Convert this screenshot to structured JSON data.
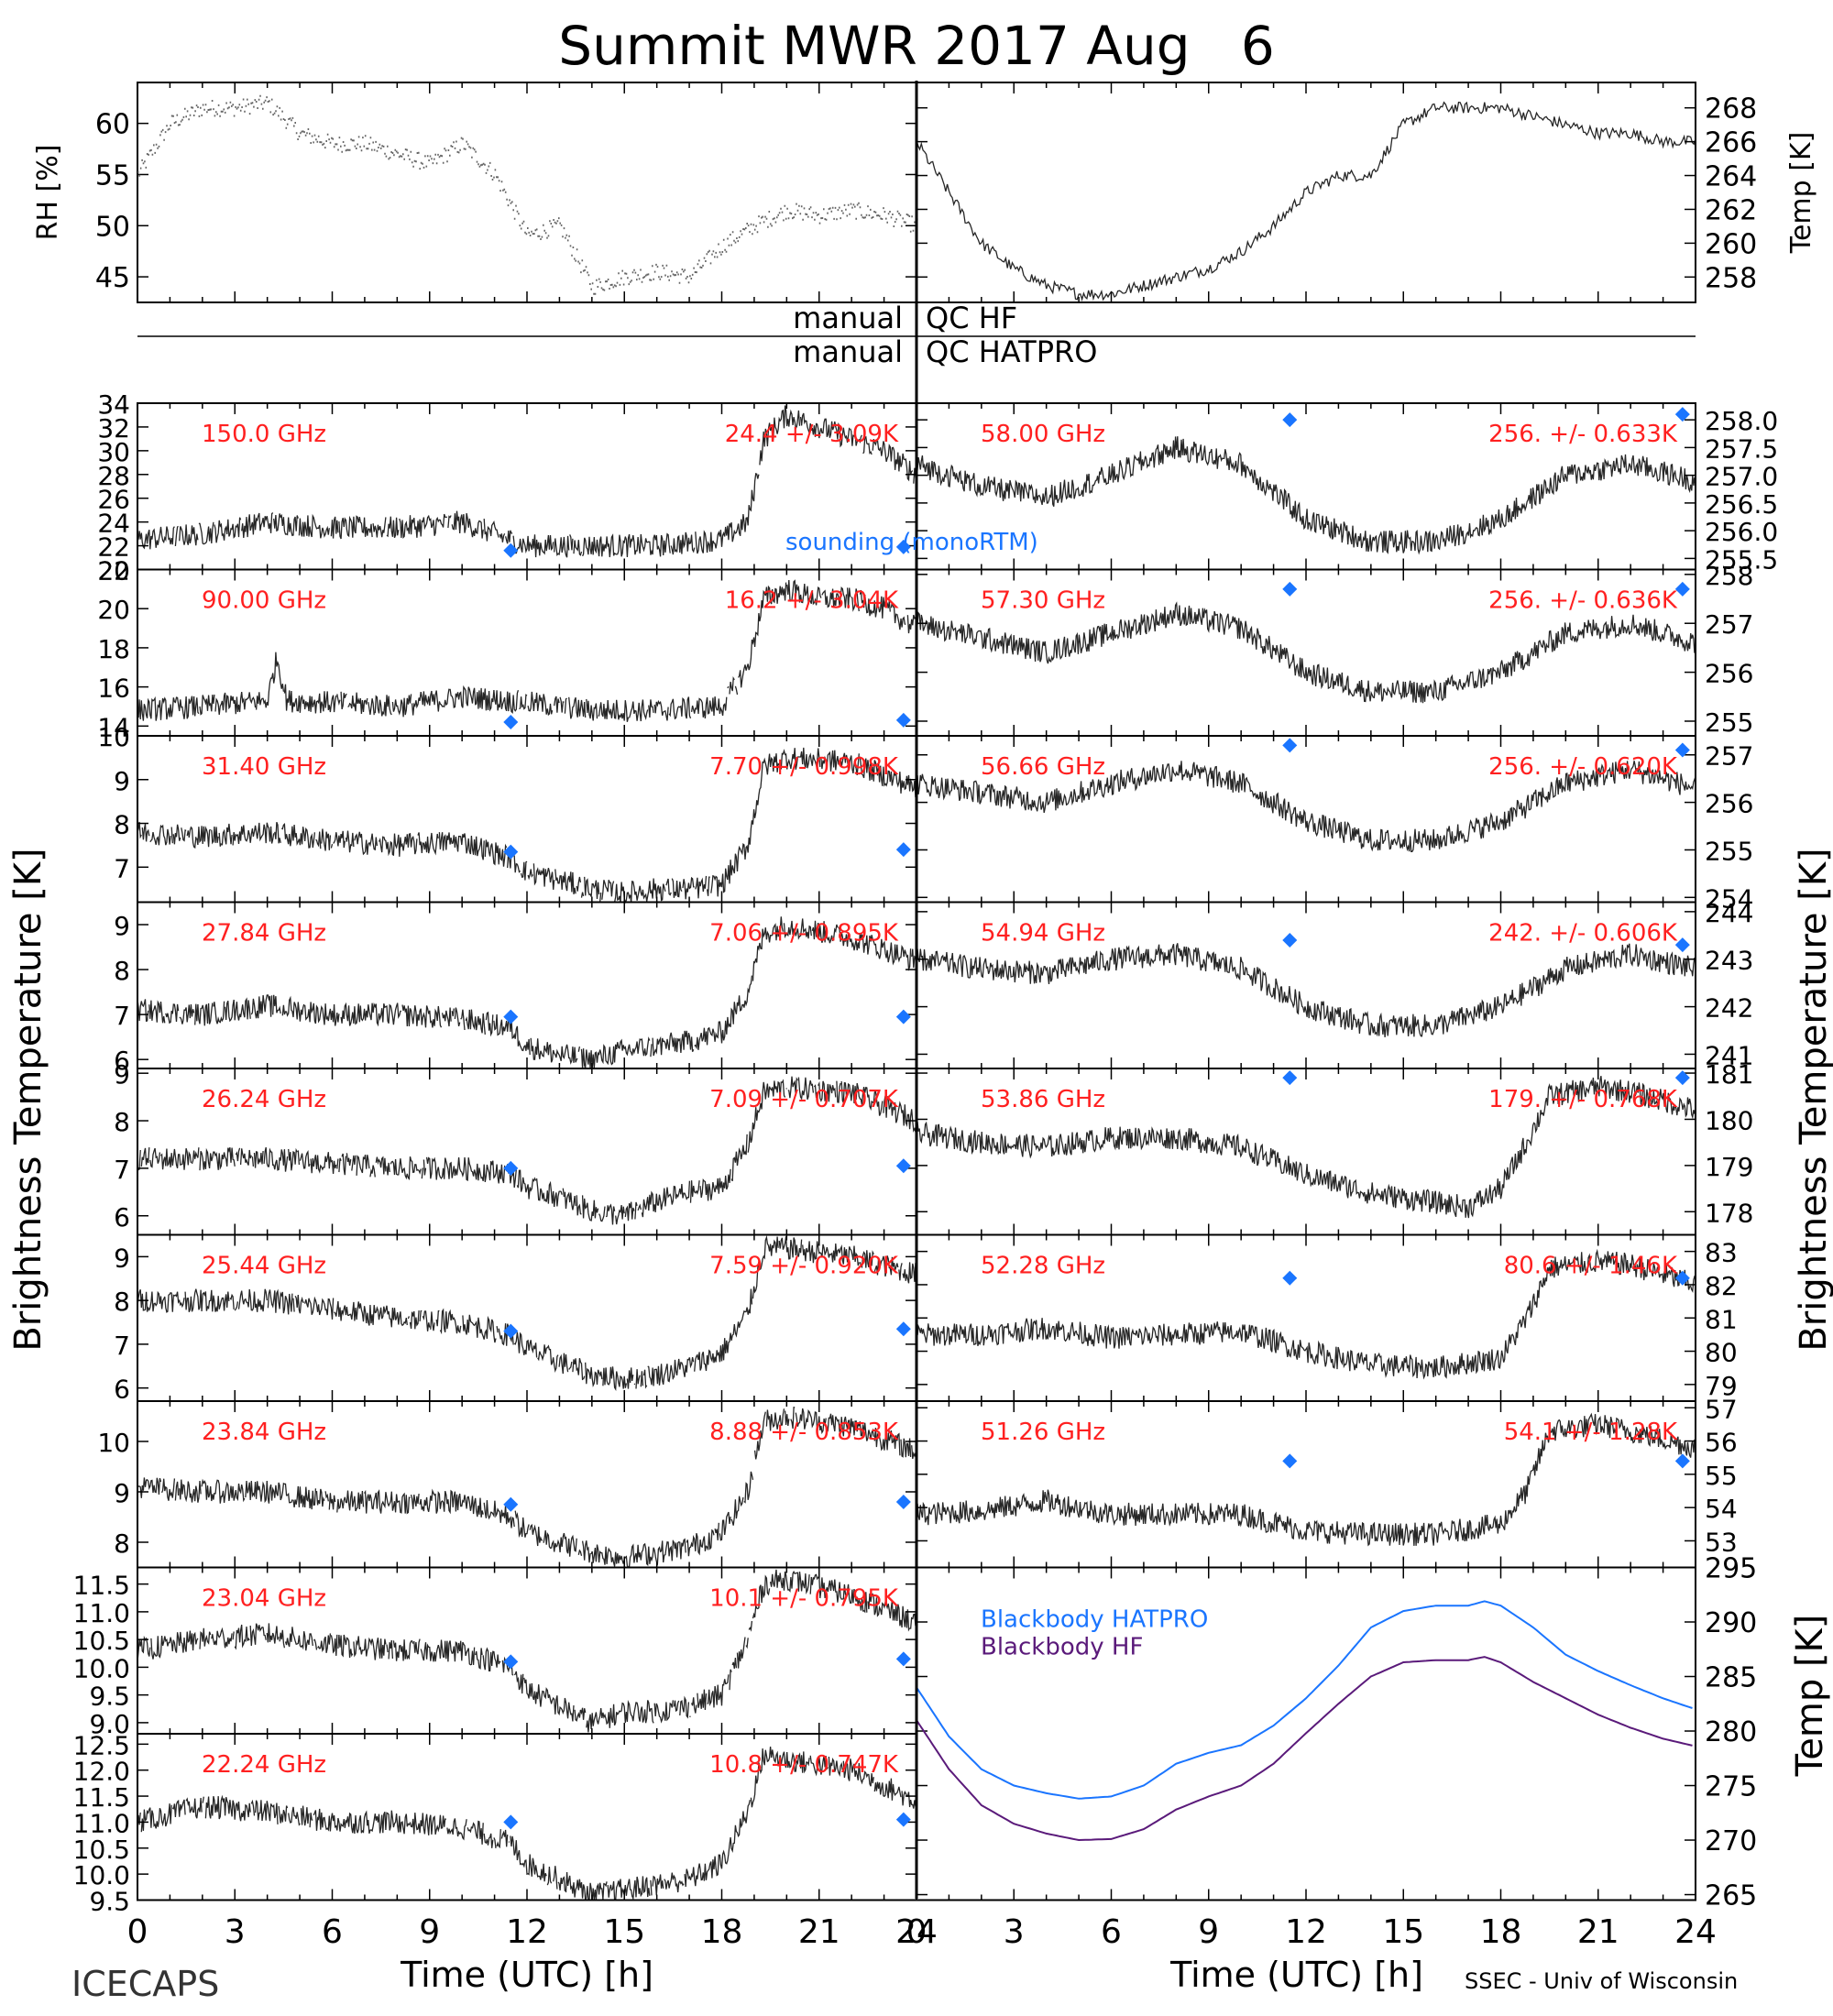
{
  "title": "Summit MWR 2017 Aug   6",
  "footer_left": "ICECAPS",
  "footer_right": "SSEC - Univ of Wisconsin",
  "colors": {
    "ink": "#000000",
    "label": "#ff2020",
    "sounding": "#1a75ff",
    "bb_hatpro": "#1a75ff",
    "bb_hf": "#5a1a7a"
  },
  "qc": {
    "hf_left": "manual",
    "hf_right": "QC HF",
    "hatpro_left": "manual",
    "hatpro_right": "QC HATPRO"
  },
  "y_axis_title": "Brightness Temperature [K]",
  "sounding_label": "sounding (monoRTM)",
  "chart_data": [
    {
      "id": "rh",
      "type": "scatter",
      "ylabel": "RH [%]",
      "xlim": [
        0,
        24
      ],
      "ylim": [
        42.5,
        64
      ],
      "yticks": [
        "45",
        "50",
        "55",
        "60"
      ],
      "x": [
        0,
        1,
        2,
        3,
        4,
        5,
        6,
        7,
        8,
        9,
        10,
        11,
        12,
        13,
        14,
        15,
        16,
        17,
        18,
        19,
        20,
        21,
        22,
        23,
        24
      ],
      "values": [
        55,
        60,
        61.5,
        61.5,
        62,
        59,
        58,
        58,
        57,
        56,
        58,
        55,
        49,
        50,
        44,
        45,
        45.5,
        45,
        48,
        50,
        51.5,
        51,
        51.5,
        51,
        50
      ]
    },
    {
      "id": "temp",
      "type": "line",
      "ylabel": "Temp [K]",
      "xlim": [
        0,
        24
      ],
      "ylim": [
        256.5,
        269.5
      ],
      "yticks": [
        "258",
        "260",
        "262",
        "264",
        "266",
        "268"
      ],
      "x": [
        0,
        1,
        2,
        3,
        4,
        5,
        6,
        7,
        8,
        9,
        10,
        11,
        12,
        13,
        14,
        15,
        16,
        17,
        18,
        19,
        20,
        21,
        22,
        23,
        24
      ],
      "values": [
        266,
        263,
        260,
        258.5,
        257.5,
        257,
        257,
        257.5,
        258,
        258.5,
        259.5,
        261,
        263,
        264,
        264,
        267,
        268,
        268,
        268,
        267.5,
        267,
        266.5,
        266.5,
        266,
        266
      ]
    },
    {
      "id": "150",
      "type": "line",
      "freq": "150.0 GHz",
      "stat": "24.4 +/- 3.09K",
      "ylim": [
        20,
        34
      ],
      "yticks": [
        "20",
        "22",
        "24",
        "26",
        "28",
        "30",
        "32",
        "34"
      ],
      "x": [
        0,
        2,
        4,
        6,
        8,
        10,
        11.5,
        12,
        14,
        16,
        18,
        18.8,
        19.3,
        20,
        21,
        22,
        23,
        24
      ],
      "values": [
        22.5,
        23,
        24,
        23.5,
        23.5,
        24,
        22.5,
        22,
        22,
        22,
        22.5,
        24,
        31,
        33,
        32,
        31,
        30,
        28
      ],
      "sounding": [
        [
          11.5,
          21.6
        ],
        [
          23.6,
          21.9
        ]
      ]
    },
    {
      "id": "90",
      "type": "line",
      "freq": "90.00 GHz",
      "stat": "16.2 +/- 3.04K",
      "ylim": [
        13.5,
        22
      ],
      "yticks": [
        "14",
        "16",
        "18",
        "20",
        "22"
      ],
      "x": [
        0,
        2,
        4,
        4.3,
        4.6,
        6,
        8,
        10,
        12,
        14,
        16,
        18,
        18.8,
        19.3,
        20,
        21,
        22,
        23,
        24
      ],
      "values": [
        14.8,
        15,
        15.3,
        17.5,
        15.3,
        15.2,
        15,
        15.5,
        15.2,
        14.8,
        14.8,
        15,
        17,
        20.5,
        21,
        20.5,
        20.5,
        20,
        19
      ],
      "sounding": [
        [
          11.5,
          14.2
        ],
        [
          23.6,
          14.3
        ]
      ]
    },
    {
      "id": "31.40",
      "type": "line",
      "freq": "31.40 GHz",
      "stat": "7.70 +/- 0.998K",
      "ylim": [
        6.2,
        10
      ],
      "yticks": [
        "7",
        "8",
        "9",
        "10"
      ],
      "x": [
        0,
        2,
        4,
        6,
        8,
        10,
        11.5,
        12,
        13,
        14,
        15,
        16,
        17,
        18,
        18.8,
        19.3,
        20,
        22,
        24
      ],
      "values": [
        7.8,
        7.7,
        7.8,
        7.6,
        7.5,
        7.6,
        7.2,
        6.9,
        6.7,
        6.5,
        6.4,
        6.5,
        6.5,
        6.6,
        7.5,
        9.3,
        9.5,
        9.4,
        8.8
      ],
      "sounding": [
        [
          11.5,
          7.35
        ],
        [
          23.6,
          7.4
        ]
      ]
    },
    {
      "id": "27.84",
      "type": "line",
      "freq": "27.84 GHz",
      "stat": "7.06 +/- 0.895K",
      "ylim": [
        5.8,
        9.5
      ],
      "yticks": [
        "6",
        "7",
        "8",
        "9"
      ],
      "x": [
        0,
        2,
        4,
        6,
        8,
        10,
        11.5,
        12,
        13,
        14,
        15,
        16,
        17,
        18,
        18.8,
        19.3,
        20,
        22,
        24
      ],
      "values": [
        7.1,
        7,
        7.2,
        7,
        7,
        6.9,
        6.7,
        6.3,
        6.1,
        6,
        6.2,
        6.3,
        6.4,
        6.6,
        7.5,
        8.8,
        9,
        8.7,
        8.2
      ],
      "sounding": [
        [
          11.5,
          6.95
        ],
        [
          23.6,
          6.95
        ]
      ]
    },
    {
      "id": "26.24",
      "type": "line",
      "freq": "26.24 GHz",
      "stat": "7.09 +/- 0.707K",
      "ylim": [
        5.6,
        9.1
      ],
      "yticks": [
        "6",
        "7",
        "8",
        "9"
      ],
      "x": [
        0,
        2,
        4,
        6,
        8,
        10,
        11.5,
        12,
        13,
        14,
        15,
        16,
        17,
        18,
        18.8,
        19.3,
        20,
        22,
        24
      ],
      "values": [
        7.2,
        7.2,
        7.2,
        7.1,
        7,
        7,
        6.9,
        6.6,
        6.4,
        6.1,
        6,
        6.3,
        6.5,
        6.6,
        7.5,
        8.6,
        8.7,
        8.6,
        8
      ],
      "sounding": [
        [
          11.5,
          7.0
        ],
        [
          23.6,
          7.05
        ]
      ]
    },
    {
      "id": "25.44",
      "type": "line",
      "freq": "25.44 GHz",
      "stat": "7.59 +/- 0.920K",
      "ylim": [
        5.7,
        9.5
      ],
      "yticks": [
        "6",
        "7",
        "8",
        "9"
      ],
      "x": [
        0,
        2,
        4,
        6,
        8,
        10,
        11.5,
        12,
        13,
        14,
        15,
        16,
        17,
        18,
        18.8,
        19.3,
        20,
        22,
        24
      ],
      "values": [
        8,
        8,
        8,
        7.8,
        7.6,
        7.5,
        7.2,
        6.9,
        6.6,
        6.3,
        6.2,
        6.3,
        6.5,
        6.8,
        7.7,
        9.2,
        9.2,
        9,
        8.6
      ],
      "sounding": [
        [
          11.5,
          7.3
        ],
        [
          23.6,
          7.35
        ]
      ]
    },
    {
      "id": "23.84",
      "type": "line",
      "freq": "23.84 GHz",
      "stat": "8.88 +/- 0.853K",
      "ylim": [
        7.5,
        10.8
      ],
      "yticks": [
        "8",
        "9",
        "10"
      ],
      "x": [
        0,
        2,
        4,
        6,
        8,
        10,
        11.5,
        12,
        13,
        14,
        15,
        16,
        17,
        18,
        18.8,
        19.3,
        20,
        22,
        24
      ],
      "values": [
        9.1,
        9,
        9,
        8.8,
        8.8,
        8.8,
        8.5,
        8.2,
        8,
        7.8,
        7.7,
        7.8,
        7.9,
        8.2,
        9,
        10.4,
        10.5,
        10.3,
        9.8
      ],
      "sounding": [
        [
          11.5,
          8.75
        ],
        [
          23.6,
          8.8
        ]
      ]
    },
    {
      "id": "23.04",
      "type": "line",
      "freq": "23.04 GHz",
      "stat": "10.1 +/- 0.795K",
      "ylim": [
        8.8,
        11.8
      ],
      "yticks": [
        "9.0",
        "9.5",
        "10.0",
        "10.5",
        "11.0",
        "11.5"
      ],
      "x": [
        0,
        2,
        4,
        6,
        8,
        10,
        11.5,
        12,
        13,
        14,
        15,
        16,
        17,
        18,
        18.8,
        19.3,
        20,
        22,
        24
      ],
      "values": [
        10.3,
        10.5,
        10.6,
        10.4,
        10.3,
        10.3,
        10,
        9.6,
        9.3,
        9,
        9.2,
        9.2,
        9.3,
        9.5,
        10.5,
        11.5,
        11.6,
        11.3,
        10.8
      ],
      "sounding": [
        [
          11.5,
          10.1
        ],
        [
          23.6,
          10.15
        ]
      ]
    },
    {
      "id": "22.24",
      "type": "line",
      "freq": "22.24 GHz",
      "stat": "10.8 +/- 0.747K",
      "ylim": [
        9.5,
        12.7
      ],
      "yticks": [
        "9.5",
        "10.0",
        "10.5",
        "11.0",
        "11.5",
        "12.0",
        "12.5"
      ],
      "x": [
        0,
        2,
        4,
        6,
        8,
        10,
        11.5,
        12,
        13,
        14,
        15,
        16,
        17,
        18,
        18.8,
        19.3,
        20,
        22,
        24
      ],
      "values": [
        11,
        11.3,
        11.2,
        11,
        11,
        10.9,
        10.6,
        10.2,
        9.9,
        9.6,
        9.7,
        9.8,
        9.9,
        10.2,
        11.2,
        12.3,
        12.2,
        12,
        11.4
      ],
      "sounding": [
        [
          11.5,
          11.0
        ],
        [
          23.6,
          11.05
        ]
      ]
    },
    {
      "id": "58.00",
      "type": "line",
      "freq": "58.00 GHz",
      "stat": "256. +/- 0.633K",
      "ylim": [
        255.3,
        258.3
      ],
      "yticks": [
        "255.5",
        "256.0",
        "256.5",
        "257.0",
        "257.5",
        "258.0"
      ],
      "x": [
        0,
        2,
        4,
        6,
        8,
        10,
        12,
        14,
        16,
        18,
        20,
        22,
        24
      ],
      "values": [
        257.2,
        256.8,
        256.6,
        257.0,
        257.5,
        257.2,
        256.2,
        255.8,
        255.8,
        256.2,
        257.0,
        257.2,
        256.9
      ],
      "sounding": [
        [
          11.5,
          258.0
        ],
        [
          23.6,
          258.1
        ]
      ]
    },
    {
      "id": "57.30",
      "type": "line",
      "freq": "57.30 GHz",
      "stat": "256. +/- 0.636K",
      "ylim": [
        254.7,
        258.1
      ],
      "yticks": [
        "255",
        "256",
        "257",
        "258"
      ],
      "x": [
        0,
        2,
        4,
        6,
        8,
        10,
        12,
        14,
        16,
        18,
        20,
        22,
        24
      ],
      "values": [
        257.0,
        256.7,
        256.4,
        256.8,
        257.2,
        256.9,
        256.0,
        255.6,
        255.6,
        256.0,
        256.8,
        257.0,
        256.6
      ],
      "sounding": [
        [
          11.5,
          257.7
        ],
        [
          23.6,
          257.7
        ]
      ]
    },
    {
      "id": "56.66",
      "type": "line",
      "freq": "56.66 GHz",
      "stat": "256. +/- 0.620K",
      "ylim": [
        253.9,
        257.4
      ],
      "yticks": [
        "254",
        "255",
        "256",
        "257"
      ],
      "x": [
        0,
        2,
        4,
        6,
        8,
        10,
        12,
        14,
        16,
        18,
        20,
        22,
        24
      ],
      "values": [
        256.4,
        256.2,
        256.0,
        256.4,
        256.7,
        256.4,
        255.6,
        255.2,
        255.2,
        255.6,
        256.4,
        256.7,
        256.3
      ],
      "sounding": [
        [
          11.5,
          257.2
        ],
        [
          23.6,
          257.1
        ]
      ]
    },
    {
      "id": "54.94",
      "type": "line",
      "freq": "54.94 GHz",
      "stat": "242. +/- 0.606K",
      "ylim": [
        240.7,
        244.2
      ],
      "yticks": [
        "241",
        "242",
        "243",
        "244"
      ],
      "x": [
        0,
        2,
        4,
        6,
        8,
        10,
        12,
        14,
        16,
        18,
        20,
        22,
        24
      ],
      "values": [
        243.0,
        242.8,
        242.7,
        243.0,
        243.1,
        242.8,
        242.0,
        241.6,
        241.6,
        242.0,
        242.8,
        243.1,
        242.8
      ],
      "sounding": [
        [
          11.5,
          243.4
        ],
        [
          23.6,
          243.3
        ]
      ]
    },
    {
      "id": "53.86",
      "type": "line",
      "freq": "53.86 GHz",
      "stat": "179. +/- 0.768K",
      "ylim": [
        177.5,
        181.1
      ],
      "yticks": [
        "178",
        "179",
        "180",
        "181"
      ],
      "x": [
        0,
        2,
        4,
        6,
        8,
        10,
        12,
        14,
        16,
        17,
        18,
        18.8,
        19.5,
        21,
        22,
        24
      ],
      "values": [
        179.7,
        179.5,
        179.4,
        179.6,
        179.6,
        179.4,
        178.8,
        178.4,
        178.2,
        178.1,
        178.5,
        179.5,
        180.5,
        180.7,
        180.6,
        180.2
      ],
      "sounding": [
        [
          11.5,
          180.9
        ],
        [
          23.6,
          180.9
        ]
      ]
    },
    {
      "id": "52.28",
      "type": "line",
      "freq": "52.28 GHz",
      "stat": "80.6 +/- 1.46K",
      "ylim": [
        78.5,
        83.5
      ],
      "yticks": [
        "79",
        "80",
        "81",
        "82",
        "83"
      ],
      "x": [
        0,
        2,
        4,
        6,
        8,
        10,
        12,
        14,
        16,
        18,
        18.8,
        19.5,
        21,
        22,
        24
      ],
      "values": [
        80.5,
        80.5,
        80.7,
        80.4,
        80.5,
        80.6,
        80.0,
        79.6,
        79.5,
        79.8,
        81,
        82.5,
        82.7,
        82.6,
        82.0
      ],
      "sounding": [
        [
          11.5,
          82.2
        ],
        [
          23.6,
          82.2
        ]
      ]
    },
    {
      "id": "51.26",
      "type": "line",
      "freq": "51.26 GHz",
      "stat": "54.1 +/- 1.28K",
      "ylim": [
        52.2,
        57.2
      ],
      "yticks": [
        "53",
        "54",
        "55",
        "56",
        "57"
      ],
      "x": [
        0,
        2,
        4,
        6,
        8,
        10,
        12,
        14,
        16,
        18,
        18.8,
        19.5,
        21,
        22,
        24
      ],
      "values": [
        53.8,
        53.9,
        54.2,
        53.8,
        53.8,
        53.8,
        53.3,
        53.2,
        53.2,
        53.5,
        54.5,
        56.3,
        56.5,
        56.3,
        55.8
      ],
      "sounding": [
        [
          11.5,
          55.4
        ],
        [
          23.6,
          55.4
        ]
      ]
    },
    {
      "id": "bb",
      "type": "line",
      "ylabel": "Temp [K]",
      "xlim": [
        0,
        24
      ],
      "ylim": [
        264.5,
        295
      ],
      "yticks": [
        "265",
        "270",
        "275",
        "280",
        "285",
        "290",
        "295"
      ],
      "series": [
        {
          "name": "Blackbody HATPRO",
          "x": [
            0,
            1,
            2,
            3,
            4,
            5,
            6,
            7,
            8,
            9,
            10,
            11,
            12,
            13,
            14,
            15,
            16,
            17,
            17.5,
            18,
            19,
            20,
            21,
            22,
            23,
            24
          ],
          "values": [
            284,
            279.5,
            276.5,
            275,
            274.3,
            273.8,
            274,
            275,
            277,
            278,
            278.7,
            280.5,
            283,
            286,
            289.5,
            291,
            291.5,
            291.5,
            291.9,
            291.5,
            289.5,
            287,
            285.5,
            284.2,
            283,
            282
          ]
        },
        {
          "name": "Blackbody HF",
          "x": [
            0,
            1,
            2,
            3,
            4,
            5,
            6,
            7,
            8,
            9,
            10,
            11,
            12,
            13,
            14,
            15,
            16,
            17,
            17.5,
            18,
            19,
            20,
            21,
            22,
            23,
            24
          ],
          "values": [
            281,
            276.5,
            273.2,
            271.5,
            270.6,
            270,
            270.1,
            271,
            272.8,
            274,
            275,
            277,
            279.8,
            282.5,
            285,
            286.3,
            286.5,
            286.5,
            286.8,
            286.3,
            284.5,
            283,
            281.5,
            280.3,
            279.3,
            278.6
          ]
        }
      ]
    }
  ],
  "x_axis": {
    "ticks": [
      "0",
      "3",
      "6",
      "9",
      "12",
      "15",
      "18",
      "21",
      "24"
    ],
    "label": "Time (UTC) [h]"
  }
}
